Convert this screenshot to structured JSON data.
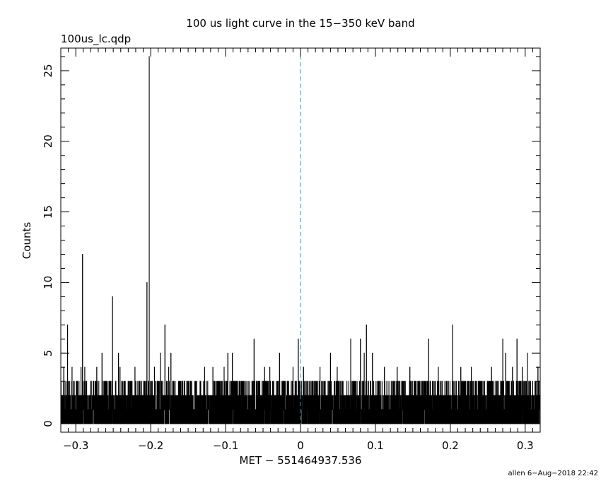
{
  "chart_data": {
    "type": "line",
    "title": "100 us light curve in the 15−350 keV band",
    "subtitle": "100us_lc.qdp",
    "xlabel": "MET − 551464937.536",
    "ylabel": "Counts",
    "footer": "allen  6−Aug−2018 22:42",
    "xlim": [
      -0.32,
      0.32
    ],
    "ylim": [
      -0.6,
      26.6
    ],
    "xticks": [
      -0.3,
      -0.2,
      -0.1,
      0,
      0.1,
      0.2,
      0.3
    ],
    "xtick_labels": [
      "−0.3",
      "−0.2",
      "−0.1",
      "0",
      "0.1",
      "0.2",
      "0.3"
    ],
    "yticks": [
      0,
      5,
      10,
      15,
      20,
      25
    ],
    "ytick_labels": [
      "0",
      "5",
      "10",
      "15",
      "20",
      "25"
    ],
    "trigger_line": {
      "x": 0,
      "color": "#1a9fb8",
      "style": "dashed"
    },
    "line_color": "#000000",
    "bin_width": 0.0001,
    "series": [
      {
        "values_description_note": "",
        "peaks": [
          {
            "x": -0.316,
            "y": 4
          },
          {
            "x": -0.311,
            "y": 7
          },
          {
            "x": -0.305,
            "y": 4
          },
          {
            "x": -0.298,
            "y": 3
          },
          {
            "x": -0.293,
            "y": 4
          },
          {
            "x": -0.291,
            "y": 12
          },
          {
            "x": -0.288,
            "y": 4
          },
          {
            "x": -0.272,
            "y": 4
          },
          {
            "x": -0.265,
            "y": 5
          },
          {
            "x": -0.251,
            "y": 9
          },
          {
            "x": -0.247,
            "y": 3
          },
          {
            "x": -0.243,
            "y": 5
          },
          {
            "x": -0.241,
            "y": 4
          },
          {
            "x": -0.235,
            "y": 3
          },
          {
            "x": -0.221,
            "y": 4
          },
          {
            "x": -0.216,
            "y": 3
          },
          {
            "x": -0.205,
            "y": 10
          },
          {
            "x": -0.202,
            "y": 26
          },
          {
            "x": -0.198,
            "y": 3
          },
          {
            "x": -0.195,
            "y": 4
          },
          {
            "x": -0.191,
            "y": 3
          },
          {
            "x": -0.187,
            "y": 5
          },
          {
            "x": -0.181,
            "y": 7
          },
          {
            "x": -0.176,
            "y": 4
          },
          {
            "x": -0.173,
            "y": 5
          },
          {
            "x": -0.168,
            "y": 3
          },
          {
            "x": -0.158,
            "y": 3
          },
          {
            "x": -0.128,
            "y": 4
          },
          {
            "x": -0.117,
            "y": 4
          },
          {
            "x": -0.102,
            "y": 4
          },
          {
            "x": -0.097,
            "y": 5
          },
          {
            "x": -0.091,
            "y": 5
          },
          {
            "x": -0.062,
            "y": 6
          },
          {
            "x": -0.056,
            "y": 3
          },
          {
            "x": -0.048,
            "y": 4
          },
          {
            "x": -0.041,
            "y": 4
          },
          {
            "x": -0.028,
            "y": 5
          },
          {
            "x": -0.024,
            "y": 3
          },
          {
            "x": -0.016,
            "y": 3
          },
          {
            "x": -0.01,
            "y": 4
          },
          {
            "x": -0.003,
            "y": 6
          },
          {
            "x": 0.004,
            "y": 4
          },
          {
            "x": 0.015,
            "y": 3
          },
          {
            "x": 0.026,
            "y": 4
          },
          {
            "x": 0.04,
            "y": 5
          },
          {
            "x": 0.049,
            "y": 4
          },
          {
            "x": 0.067,
            "y": 6
          },
          {
            "x": 0.08,
            "y": 6
          },
          {
            "x": 0.085,
            "y": 5
          },
          {
            "x": 0.088,
            "y": 7
          },
          {
            "x": 0.096,
            "y": 5
          },
          {
            "x": 0.112,
            "y": 4
          },
          {
            "x": 0.129,
            "y": 4
          },
          {
            "x": 0.146,
            "y": 4
          },
          {
            "x": 0.162,
            "y": 3
          },
          {
            "x": 0.171,
            "y": 6
          },
          {
            "x": 0.184,
            "y": 4
          },
          {
            "x": 0.203,
            "y": 7
          },
          {
            "x": 0.214,
            "y": 4
          },
          {
            "x": 0.228,
            "y": 4
          },
          {
            "x": 0.241,
            "y": 3
          },
          {
            "x": 0.255,
            "y": 4
          },
          {
            "x": 0.27,
            "y": 6
          },
          {
            "x": 0.274,
            "y": 5
          },
          {
            "x": 0.283,
            "y": 4
          },
          {
            "x": 0.289,
            "y": 6
          },
          {
            "x": 0.296,
            "y": 4
          },
          {
            "x": 0.303,
            "y": 5
          },
          {
            "x": 0.31,
            "y": 3
          },
          {
            "x": 0.317,
            "y": 4
          }
        ],
        "baseline_max": 3
      }
    ],
    "grid": false,
    "legend": "none"
  }
}
